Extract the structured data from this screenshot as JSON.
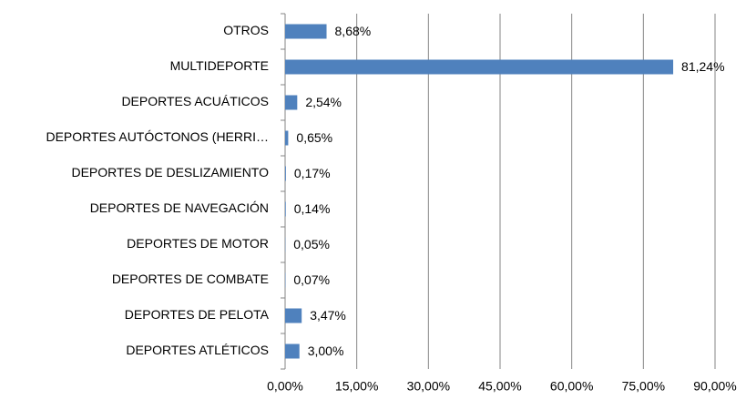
{
  "chart_data": {
    "type": "bar",
    "orientation": "horizontal",
    "categories": [
      "OTROS",
      "MULTIDEPORTE",
      "DEPORTES ACUÁTICOS",
      "DEPORTES AUTÓCTONOS (HERRI…",
      "DEPORTES DE DESLIZAMIENTO",
      "DEPORTES DE NAVEGACIÓN",
      "DEPORTES DE MOTOR",
      "DEPORTES DE COMBATE",
      "DEPORTES DE PELOTA",
      "DEPORTES ATLÉTICOS"
    ],
    "values": [
      8.68,
      81.24,
      2.54,
      0.65,
      0.17,
      0.14,
      0.05,
      0.07,
      3.47,
      3.0
    ],
    "value_labels": [
      "8,68%",
      "81,24%",
      "2,54%",
      "0,65%",
      "0,17%",
      "0,14%",
      "0,05%",
      "0,07%",
      "3,47%",
      "3,00%"
    ],
    "color": "#4f81bd",
    "xlim": [
      0,
      90
    ],
    "xticks": [
      {
        "value": 0,
        "label": "0,00%"
      },
      {
        "value": 15,
        "label": "15,00%"
      },
      {
        "value": 30,
        "label": "30,00%"
      },
      {
        "value": 45,
        "label": "45,00%"
      },
      {
        "value": 60,
        "label": "60,00%"
      },
      {
        "value": 75,
        "label": "75,00%"
      },
      {
        "value": 90,
        "label": "90,00%"
      }
    ],
    "grid": true
  }
}
